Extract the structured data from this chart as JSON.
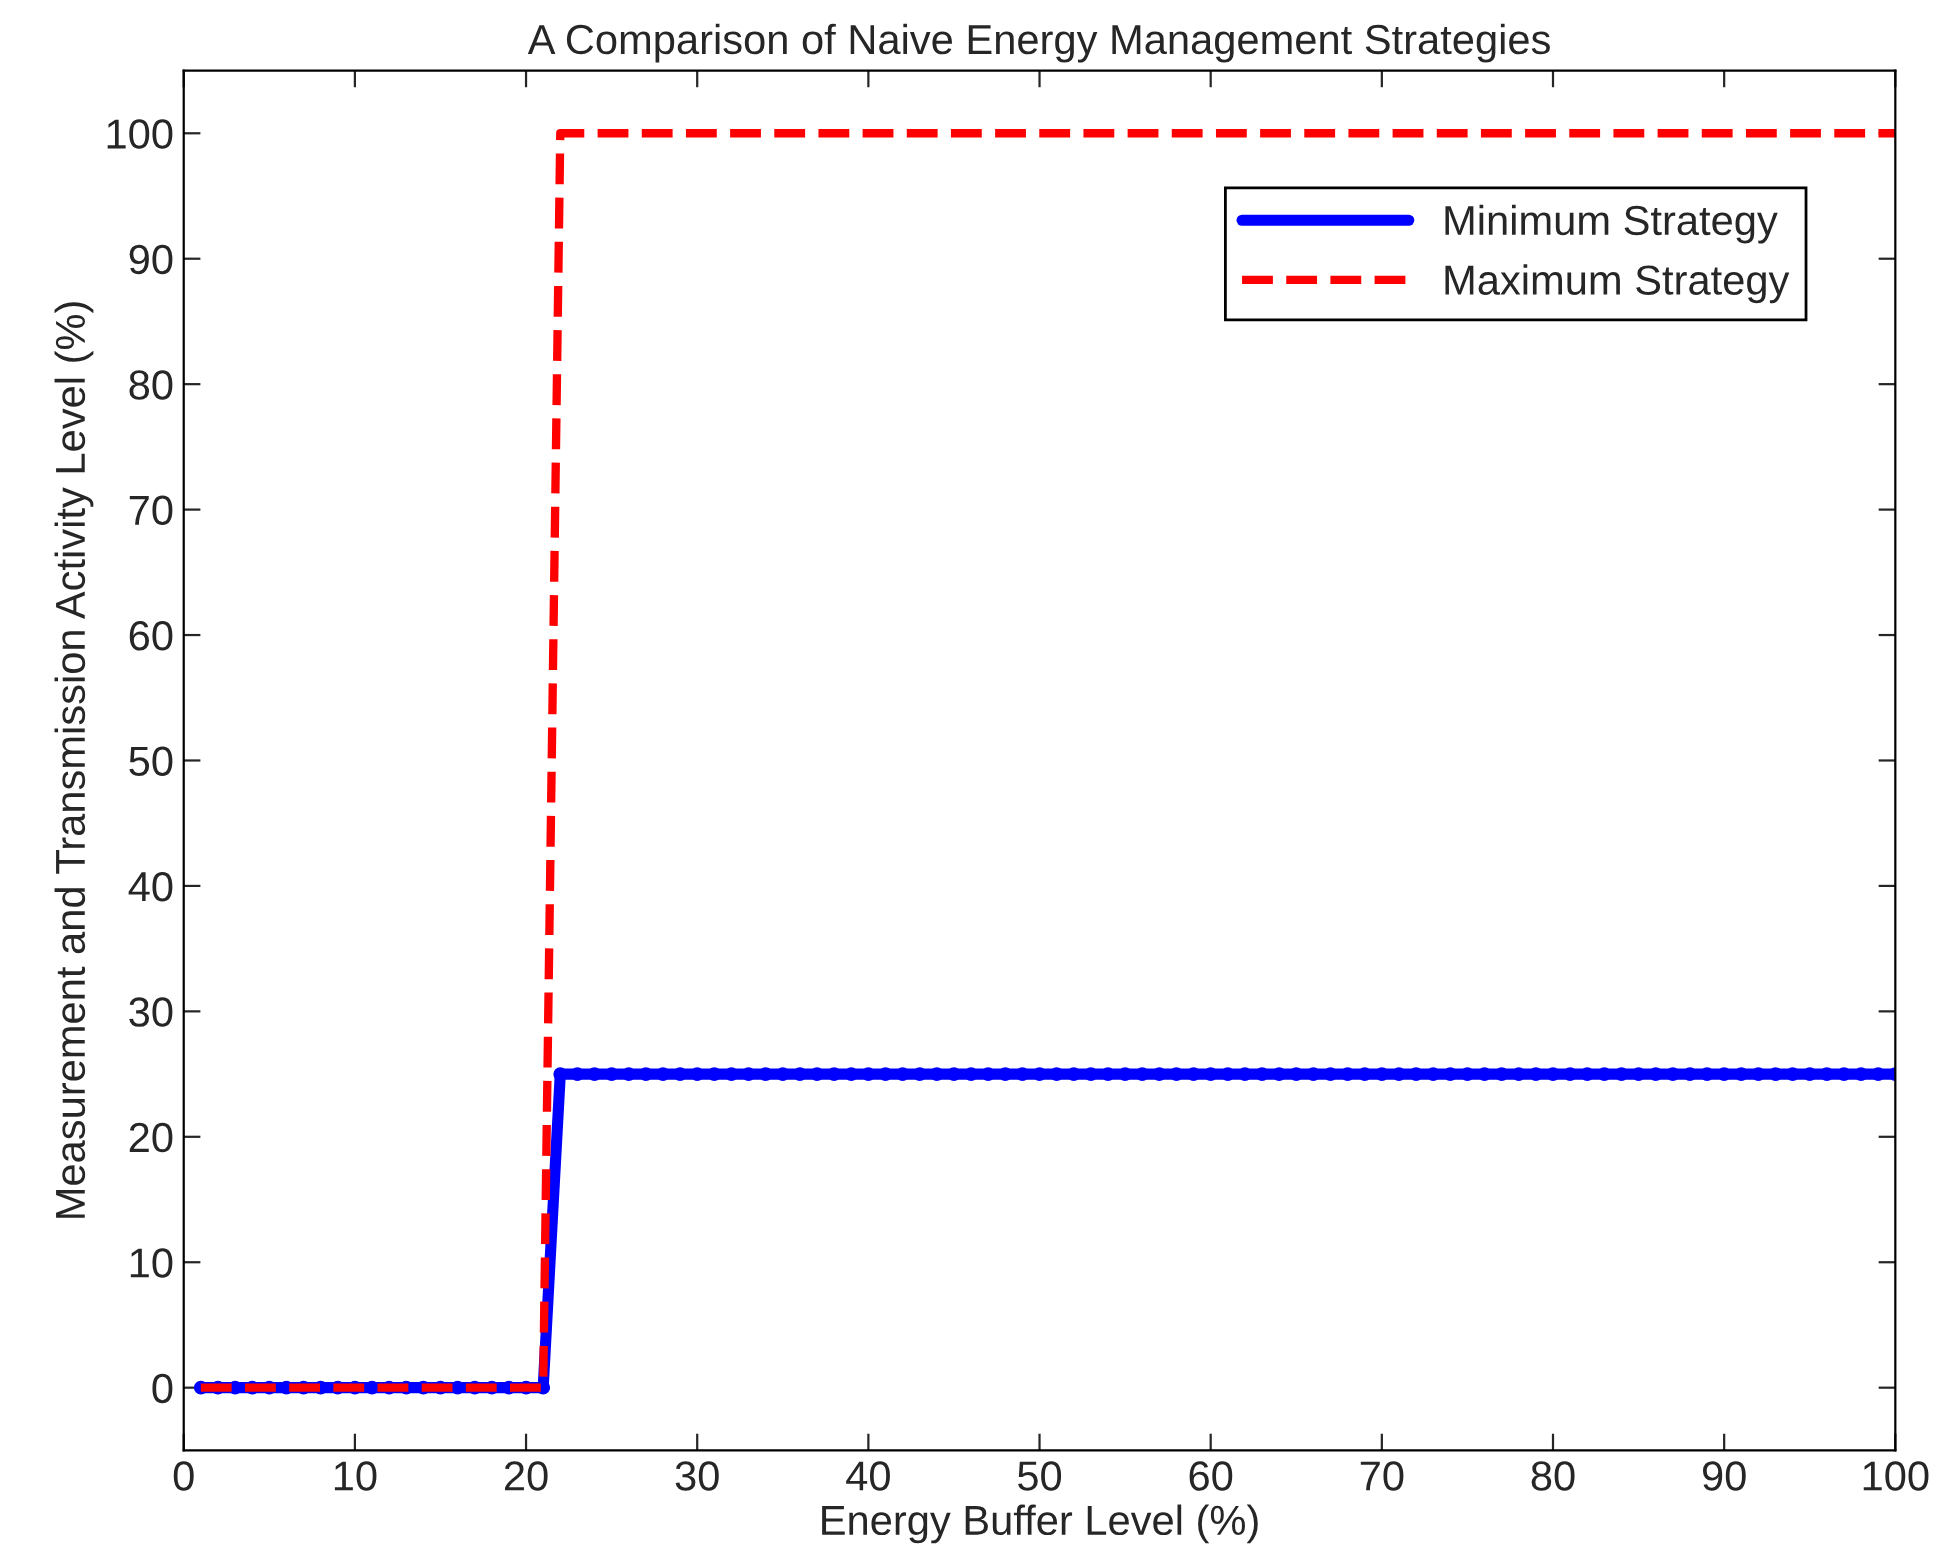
{
  "chart_data": {
    "type": "line",
    "title": "A Comparison of Naive Energy Management Strategies",
    "xlabel": "Energy Buffer Level (%)",
    "ylabel": "Measurement and Transmission Activity Level (%)",
    "x": [
      1,
      2,
      3,
      4,
      5,
      6,
      7,
      8,
      9,
      10,
      11,
      12,
      13,
      14,
      15,
      16,
      17,
      18,
      19,
      20,
      21,
      22,
      23,
      24,
      25,
      26,
      27,
      28,
      29,
      30,
      31,
      32,
      33,
      34,
      35,
      36,
      37,
      38,
      39,
      40,
      41,
      42,
      43,
      44,
      45,
      46,
      47,
      48,
      49,
      50,
      51,
      52,
      53,
      54,
      55,
      56,
      57,
      58,
      59,
      60,
      61,
      62,
      63,
      64,
      65,
      66,
      67,
      68,
      69,
      70,
      71,
      72,
      73,
      74,
      75,
      76,
      77,
      78,
      79,
      80,
      81,
      82,
      83,
      84,
      85,
      86,
      87,
      88,
      89,
      90,
      91,
      92,
      93,
      94,
      95,
      96,
      97,
      98,
      99,
      100
    ],
    "series": [
      {
        "name": "Minimum Strategy",
        "color": "#0000ff",
        "marker": "circle",
        "line_style": "solid",
        "values": [
          0,
          0,
          0,
          0,
          0,
          0,
          0,
          0,
          0,
          0,
          0,
          0,
          0,
          0,
          0,
          0,
          0,
          0,
          0,
          0,
          0,
          25,
          25,
          25,
          25,
          25,
          25,
          25,
          25,
          25,
          25,
          25,
          25,
          25,
          25,
          25,
          25,
          25,
          25,
          25,
          25,
          25,
          25,
          25,
          25,
          25,
          25,
          25,
          25,
          25,
          25,
          25,
          25,
          25,
          25,
          25,
          25,
          25,
          25,
          25,
          25,
          25,
          25,
          25,
          25,
          25,
          25,
          25,
          25,
          25,
          25,
          25,
          25,
          25,
          25,
          25,
          25,
          25,
          25,
          25,
          25,
          25,
          25,
          25,
          25,
          25,
          25,
          25,
          25,
          25,
          25,
          25,
          25,
          25,
          25,
          25,
          25,
          25,
          25,
          25
        ]
      },
      {
        "name": "Maximum Strategy",
        "color": "#ff0000",
        "marker": "none",
        "line_style": "dashed",
        "values": [
          0,
          0,
          0,
          0,
          0,
          0,
          0,
          0,
          0,
          0,
          0,
          0,
          0,
          0,
          0,
          0,
          0,
          0,
          0,
          0,
          0,
          100,
          100,
          100,
          100,
          100,
          100,
          100,
          100,
          100,
          100,
          100,
          100,
          100,
          100,
          100,
          100,
          100,
          100,
          100,
          100,
          100,
          100,
          100,
          100,
          100,
          100,
          100,
          100,
          100,
          100,
          100,
          100,
          100,
          100,
          100,
          100,
          100,
          100,
          100,
          100,
          100,
          100,
          100,
          100,
          100,
          100,
          100,
          100,
          100,
          100,
          100,
          100,
          100,
          100,
          100,
          100,
          100,
          100,
          100,
          100,
          100,
          100,
          100,
          100,
          100,
          100,
          100,
          100,
          100,
          100,
          100,
          100,
          100,
          100,
          100,
          100,
          100,
          100,
          100
        ]
      }
    ],
    "xlim": [
      0,
      100
    ],
    "ylim": [
      -5,
      105
    ],
    "xticks": [
      0,
      10,
      20,
      30,
      40,
      50,
      60,
      70,
      80,
      90,
      100
    ],
    "yticks": [
      0,
      10,
      20,
      30,
      40,
      50,
      60,
      70,
      80,
      90,
      100
    ],
    "legend": "top right",
    "grid": false
  }
}
